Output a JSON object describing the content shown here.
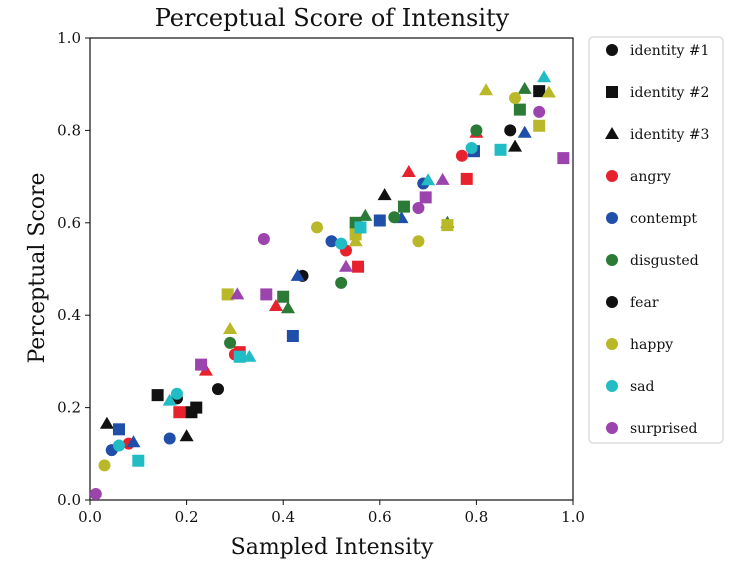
{
  "chart_data": {
    "type": "scatter",
    "title": "Perceptual Score of Intensity",
    "xlabel": "Sampled Intensity",
    "ylabel": "Perceptual Score",
    "xlim": [
      0.0,
      1.0
    ],
    "ylim": [
      0.0,
      1.0
    ],
    "xticks": [
      "0.0",
      "0.2",
      "0.4",
      "0.6",
      "0.8",
      "1.0"
    ],
    "yticks": [
      "0.0",
      "0.2",
      "0.4",
      "0.6",
      "0.8",
      "1.0"
    ],
    "grid": false,
    "legend_position": "outside-right",
    "series": [
      {
        "name": "identity #1",
        "marker": "circle",
        "color": "#111111",
        "points": [
          [
            0.18,
            0.22
          ],
          [
            0.265,
            0.24
          ],
          [
            0.44,
            0.485
          ],
          [
            0.87,
            0.8
          ]
        ]
      },
      {
        "name": "identity #2",
        "marker": "square",
        "color": "#111111",
        "points": [
          [
            0.14,
            0.227
          ],
          [
            0.21,
            0.19
          ],
          [
            0.22,
            0.2
          ],
          [
            0.93,
            0.885
          ]
        ]
      },
      {
        "name": "identity #3",
        "marker": "triangle",
        "color": "#111111",
        "points": [
          [
            0.035,
            0.165
          ],
          [
            0.2,
            0.138
          ],
          [
            0.61,
            0.66
          ],
          [
            0.88,
            0.765
          ]
        ]
      },
      {
        "name": "angry",
        "marker": "mixed",
        "color": "#e8222c",
        "points": [
          [
            0.08,
            0.122
          ],
          [
            0.185,
            0.19
          ],
          [
            0.24,
            0.28
          ],
          [
            0.3,
            0.315
          ],
          [
            0.31,
            0.32
          ],
          [
            0.385,
            0.42
          ],
          [
            0.53,
            0.54
          ],
          [
            0.555,
            0.505
          ],
          [
            0.66,
            0.71
          ],
          [
            0.77,
            0.745
          ],
          [
            0.78,
            0.695
          ],
          [
            0.8,
            0.795
          ]
        ]
      },
      {
        "name": "contempt",
        "marker": "mixed",
        "color": "#1f4fa8",
        "points": [
          [
            0.045,
            0.108
          ],
          [
            0.06,
            0.153
          ],
          [
            0.09,
            0.125
          ],
          [
            0.165,
            0.133
          ],
          [
            0.42,
            0.355
          ],
          [
            0.43,
            0.485
          ],
          [
            0.5,
            0.56
          ],
          [
            0.6,
            0.605
          ],
          [
            0.645,
            0.61
          ],
          [
            0.69,
            0.685
          ],
          [
            0.795,
            0.755
          ],
          [
            0.9,
            0.795
          ]
        ]
      },
      {
        "name": "disgusted",
        "marker": "mixed",
        "color": "#2b7a36",
        "points": [
          [
            0.29,
            0.34
          ],
          [
            0.4,
            0.44
          ],
          [
            0.41,
            0.415
          ],
          [
            0.52,
            0.47
          ],
          [
            0.55,
            0.6
          ],
          [
            0.57,
            0.615
          ],
          [
            0.63,
            0.612
          ],
          [
            0.65,
            0.635
          ],
          [
            0.74,
            0.6
          ],
          [
            0.8,
            0.8
          ],
          [
            0.89,
            0.845
          ],
          [
            0.9,
            0.89
          ]
        ]
      },
      {
        "name": "fear",
        "marker": "circle",
        "color": "#111111",
        "points": []
      },
      {
        "name": "happy",
        "marker": "mixed",
        "color": "#b8b828",
        "points": [
          [
            0.03,
            0.075
          ],
          [
            0.285,
            0.445
          ],
          [
            0.29,
            0.37
          ],
          [
            0.47,
            0.59
          ],
          [
            0.55,
            0.575
          ],
          [
            0.55,
            0.56
          ],
          [
            0.68,
            0.56
          ],
          [
            0.74,
            0.595
          ],
          [
            0.82,
            0.887
          ],
          [
            0.88,
            0.87
          ],
          [
            0.93,
            0.81
          ],
          [
            0.95,
            0.882
          ]
        ]
      },
      {
        "name": "sad",
        "marker": "mixed",
        "color": "#22bcc4",
        "points": [
          [
            0.06,
            0.118
          ],
          [
            0.1,
            0.085
          ],
          [
            0.165,
            0.215
          ],
          [
            0.18,
            0.23
          ],
          [
            0.31,
            0.31
          ],
          [
            0.33,
            0.31
          ],
          [
            0.52,
            0.555
          ],
          [
            0.56,
            0.59
          ],
          [
            0.7,
            0.692
          ],
          [
            0.79,
            0.762
          ],
          [
            0.85,
            0.758
          ],
          [
            0.94,
            0.915
          ]
        ]
      },
      {
        "name": "surprised",
        "marker": "mixed",
        "color": "#9b44ad",
        "points": [
          [
            0.012,
            0.013
          ],
          [
            0.23,
            0.293
          ],
          [
            0.305,
            0.445
          ],
          [
            0.36,
            0.565
          ],
          [
            0.365,
            0.445
          ],
          [
            0.53,
            0.505
          ],
          [
            0.68,
            0.632
          ],
          [
            0.695,
            0.655
          ],
          [
            0.73,
            0.693
          ],
          [
            0.93,
            0.84
          ],
          [
            0.98,
            0.74
          ]
        ]
      }
    ],
    "mixed_marker_order": [
      "circle",
      "square",
      "triangle"
    ]
  }
}
